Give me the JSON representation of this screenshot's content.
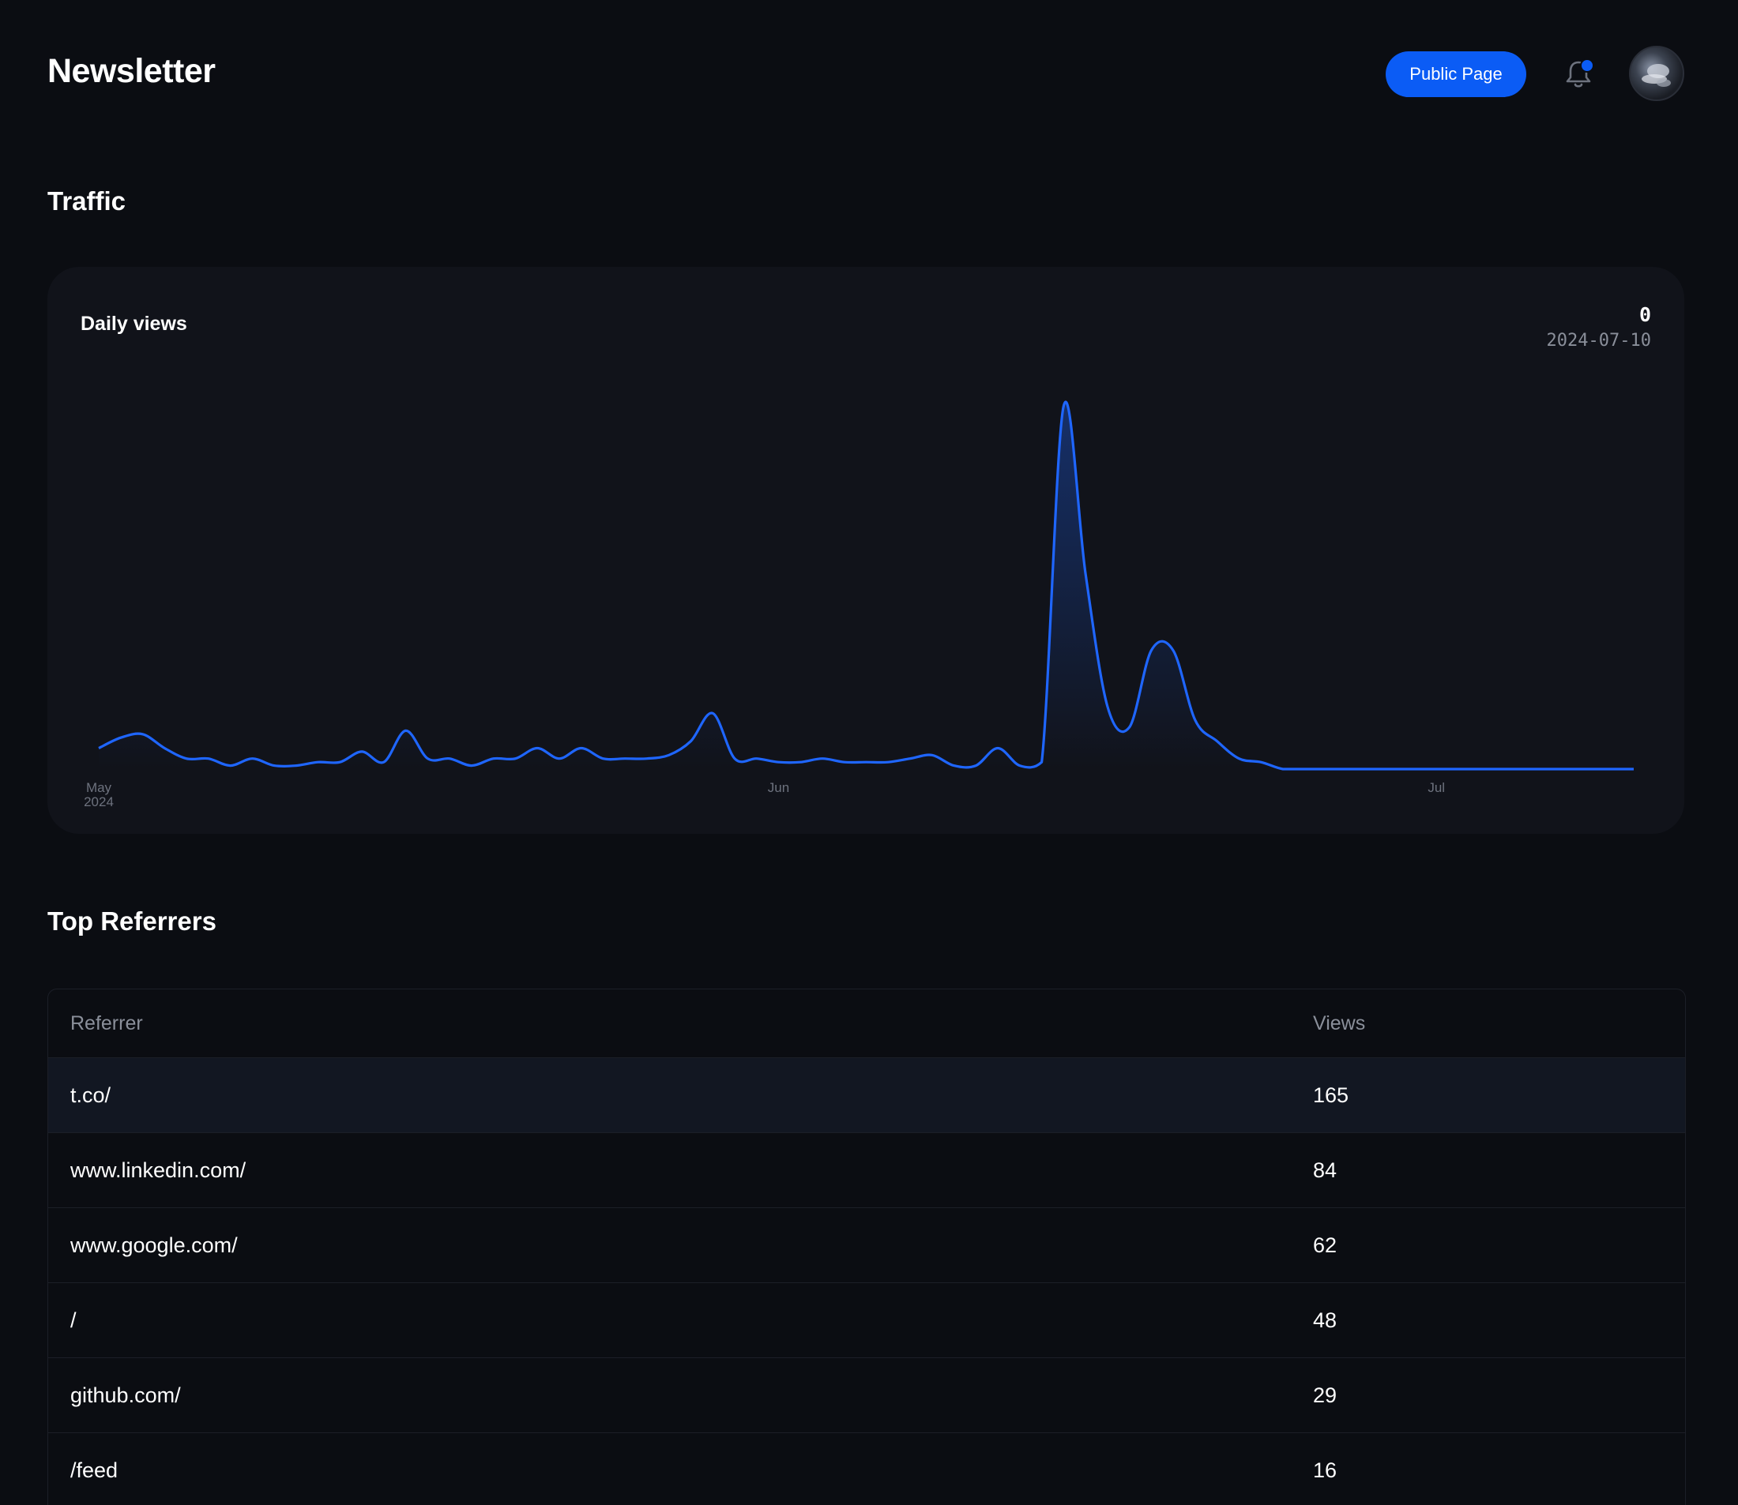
{
  "header": {
    "title": "Newsletter",
    "public_page_label": "Public Page",
    "bell_icon": "bell-icon",
    "has_notification": true,
    "avatar_icon": "user-avatar"
  },
  "traffic": {
    "title": "Traffic",
    "chart_label": "Daily views",
    "readout_value": "0",
    "readout_date": "2024-07-10"
  },
  "chart_data": {
    "type": "area",
    "title": "Daily views",
    "xlabel": "",
    "ylabel": "",
    "x_ticks": [
      {
        "date": "2024-05-01",
        "label": "May",
        "sublabel": "2024"
      },
      {
        "date": "2024-06-01",
        "label": "Jun",
        "sublabel": ""
      },
      {
        "date": "2024-07-01",
        "label": "Jul",
        "sublabel": ""
      }
    ],
    "x": [
      "2024-05-01",
      "2024-05-02",
      "2024-05-03",
      "2024-05-04",
      "2024-05-05",
      "2024-05-06",
      "2024-05-07",
      "2024-05-08",
      "2024-05-09",
      "2024-05-10",
      "2024-05-11",
      "2024-05-12",
      "2024-05-13",
      "2024-05-14",
      "2024-05-15",
      "2024-05-16",
      "2024-05-17",
      "2024-05-18",
      "2024-05-19",
      "2024-05-20",
      "2024-05-21",
      "2024-05-22",
      "2024-05-23",
      "2024-05-24",
      "2024-05-25",
      "2024-05-26",
      "2024-05-27",
      "2024-05-28",
      "2024-05-29",
      "2024-05-30",
      "2024-05-31",
      "2024-06-01",
      "2024-06-02",
      "2024-06-03",
      "2024-06-04",
      "2024-06-05",
      "2024-06-06",
      "2024-06-07",
      "2024-06-08",
      "2024-06-09",
      "2024-06-10",
      "2024-06-11",
      "2024-06-12",
      "2024-06-13",
      "2024-06-14",
      "2024-06-15",
      "2024-06-16",
      "2024-06-17",
      "2024-06-18",
      "2024-06-19",
      "2024-06-20",
      "2024-06-21",
      "2024-06-22",
      "2024-06-23",
      "2024-06-24",
      "2024-06-25",
      "2024-06-26",
      "2024-06-27",
      "2024-06-28",
      "2024-06-29",
      "2024-06-30",
      "2024-07-01",
      "2024-07-02",
      "2024-07-03",
      "2024-07-04",
      "2024-07-05",
      "2024-07-06",
      "2024-07-07",
      "2024-07-08",
      "2024-07-09",
      "2024-07-10"
    ],
    "series": [
      {
        "values": [
          3,
          4.5,
          5,
          3,
          1.5,
          1.5,
          0.5,
          1.5,
          0.5,
          0.5,
          1,
          1,
          2.5,
          1,
          5.5,
          1.5,
          1.5,
          0.5,
          1.5,
          1.5,
          3,
          1.5,
          3,
          1.5,
          1.5,
          1.5,
          2,
          4,
          8,
          1.5,
          1.5,
          1,
          1,
          1.5,
          1,
          1,
          1,
          1.5,
          2,
          0.5,
          0.5,
          3,
          0.5,
          1,
          52,
          28,
          9,
          6,
          17,
          17,
          7,
          4,
          1.5,
          1,
          0,
          0,
          0,
          0,
          0,
          0,
          0,
          0,
          0,
          0,
          0,
          0,
          0,
          0,
          0,
          0,
          0
        ],
        "color": "#1f66ff"
      }
    ],
    "ylim": [
      0,
      55
    ],
    "grid": false,
    "legend": "none"
  },
  "referrers": {
    "title": "Top Referrers",
    "columns": [
      "Referrer",
      "Views"
    ],
    "rows": [
      {
        "referrer": "t.co/",
        "views": "165"
      },
      {
        "referrer": "www.linkedin.com/",
        "views": "84"
      },
      {
        "referrer": "www.google.com/",
        "views": "62"
      },
      {
        "referrer": "/",
        "views": "48"
      },
      {
        "referrer": "github.com/",
        "views": "29"
      },
      {
        "referrer": "/feed",
        "views": "16"
      }
    ]
  },
  "colors": {
    "background": "#0b0d12",
    "card": "#11131a",
    "accent": "#0b5cf5",
    "muted_text": "#8a8f9a"
  }
}
